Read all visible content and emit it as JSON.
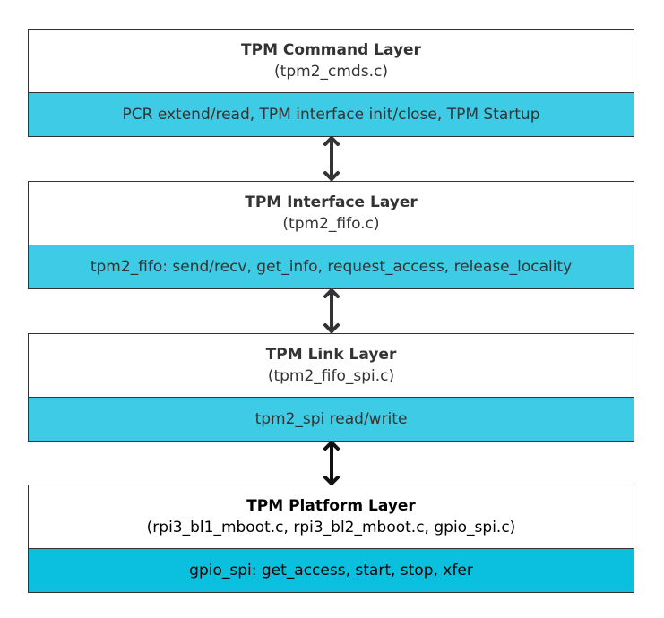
{
  "layers": [
    {
      "title": "TPM Command Layer",
      "file": "(tpm2_cmds.c)",
      "functions": "PCR extend/read, TPM interface init/close, TPM Startup",
      "fill": "#3ecbe5",
      "text": "#333333"
    },
    {
      "title": "TPM Interface Layer",
      "file": "(tpm2_fifo.c)",
      "functions": "tpm2_fifo: send/recv, get_info, request_access, release_locality",
      "fill": "#3ecbe5",
      "text": "#333333"
    },
    {
      "title": "TPM Link Layer",
      "file": "(tpm2_fifo_spi.c)",
      "functions": "tpm2_spi read/write",
      "fill": "#3ecbe5",
      "text": "#333333"
    },
    {
      "title": "TPM Platform Layer",
      "file": "(rpi3_bl1_mboot.c, rpi3_bl2_mboot.c, gpio_spi.c)",
      "functions": "gpio_spi: get_access, start, stop, xfer",
      "fill": "#0bc0df",
      "text": "#000000"
    }
  ],
  "arrows": [
    {
      "type": "bidirectional",
      "color": "#333333"
    },
    {
      "type": "bidirectional",
      "color": "#333333"
    },
    {
      "type": "bidirectional",
      "color": "#111111"
    }
  ]
}
